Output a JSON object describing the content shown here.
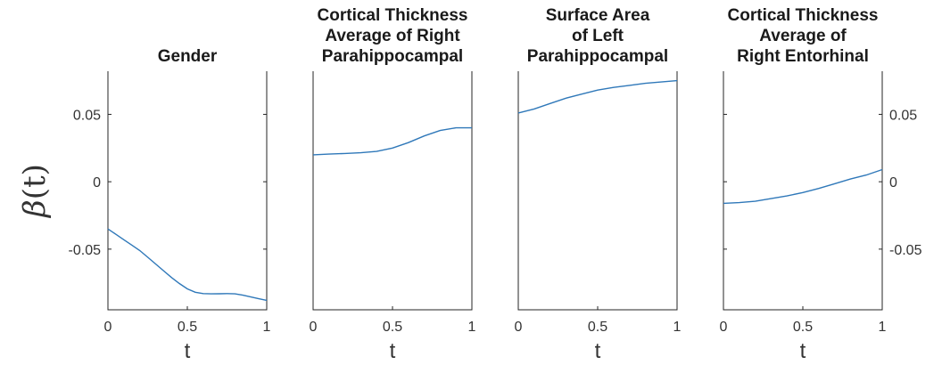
{
  "figure": {
    "ylabel": "β(t)"
  },
  "chart_data": [
    {
      "type": "line",
      "title": [
        "Gender"
      ],
      "xlabel": "t",
      "xlim": [
        0,
        1
      ],
      "ylim": [
        -0.095,
        0.082
      ],
      "xticks": [
        0,
        0.5,
        1
      ],
      "xtick_labels": [
        "0",
        "0.5",
        "1"
      ],
      "yticks": [
        0.05,
        0,
        -0.05
      ],
      "ytick_labels": [
        "0.05",
        "0",
        "-0.05"
      ],
      "ytick_side": "left",
      "series": [
        {
          "x": [
            0,
            0.05,
            0.1,
            0.15,
            0.2,
            0.25,
            0.3,
            0.35,
            0.4,
            0.45,
            0.5,
            0.55,
            0.6,
            0.65,
            0.7,
            0.75,
            0.8,
            0.85,
            0.9,
            0.95,
            1
          ],
          "y": [
            -0.035,
            -0.039,
            -0.043,
            -0.047,
            -0.051,
            -0.056,
            -0.061,
            -0.066,
            -0.071,
            -0.0755,
            -0.0795,
            -0.082,
            -0.083,
            -0.0832,
            -0.0831,
            -0.083,
            -0.0832,
            -0.0842,
            -0.0855,
            -0.0868,
            -0.088
          ]
        }
      ]
    },
    {
      "type": "line",
      "title": [
        "Cortical Thickness",
        "Average of Right",
        "Parahippocampal"
      ],
      "xlabel": "t",
      "xlim": [
        0,
        1
      ],
      "ylim": [
        -0.095,
        0.082
      ],
      "xticks": [
        0,
        0.5,
        1
      ],
      "xtick_labels": [
        "0",
        "0.5",
        "1"
      ],
      "yticks": [],
      "ytick_labels": [],
      "ytick_side": "none",
      "series": [
        {
          "x": [
            0,
            0.1,
            0.2,
            0.3,
            0.4,
            0.5,
            0.6,
            0.7,
            0.8,
            0.9,
            1
          ],
          "y": [
            0.02,
            0.0205,
            0.021,
            0.0215,
            0.0225,
            0.025,
            0.029,
            0.034,
            0.038,
            0.04,
            0.04
          ]
        }
      ]
    },
    {
      "type": "line",
      "title": [
        "Surface Area",
        "of Left",
        "Parahippocampal"
      ],
      "xlabel": "t",
      "xlim": [
        0,
        1
      ],
      "ylim": [
        -0.095,
        0.082
      ],
      "xticks": [
        0,
        0.5,
        1
      ],
      "xtick_labels": [
        "0",
        "0.5",
        "1"
      ],
      "yticks": [],
      "ytick_labels": [],
      "ytick_side": "none",
      "series": [
        {
          "x": [
            0,
            0.1,
            0.2,
            0.3,
            0.4,
            0.5,
            0.6,
            0.7,
            0.8,
            0.9,
            1
          ],
          "y": [
            0.051,
            0.054,
            0.058,
            0.062,
            0.065,
            0.068,
            0.07,
            0.0715,
            0.073,
            0.074,
            0.075
          ]
        }
      ]
    },
    {
      "type": "line",
      "title": [
        "Cortical Thickness",
        "Average of",
        "Right Entorhinal"
      ],
      "xlabel": "t",
      "xlim": [
        0,
        1
      ],
      "ylim": [
        -0.095,
        0.082
      ],
      "xticks": [
        0,
        0.5,
        1
      ],
      "xtick_labels": [
        "0",
        "0.5",
        "1"
      ],
      "yticks": [
        0.05,
        0,
        -0.05
      ],
      "ytick_labels": [
        "0.05",
        "0",
        "-0.05"
      ],
      "ytick_side": "right",
      "series": [
        {
          "x": [
            0,
            0.1,
            0.2,
            0.3,
            0.4,
            0.5,
            0.6,
            0.7,
            0.8,
            0.9,
            1
          ],
          "y": [
            -0.016,
            -0.0155,
            -0.0145,
            -0.0125,
            -0.0105,
            -0.008,
            -0.005,
            -0.0015,
            0.002,
            0.005,
            0.009
          ]
        }
      ]
    }
  ]
}
